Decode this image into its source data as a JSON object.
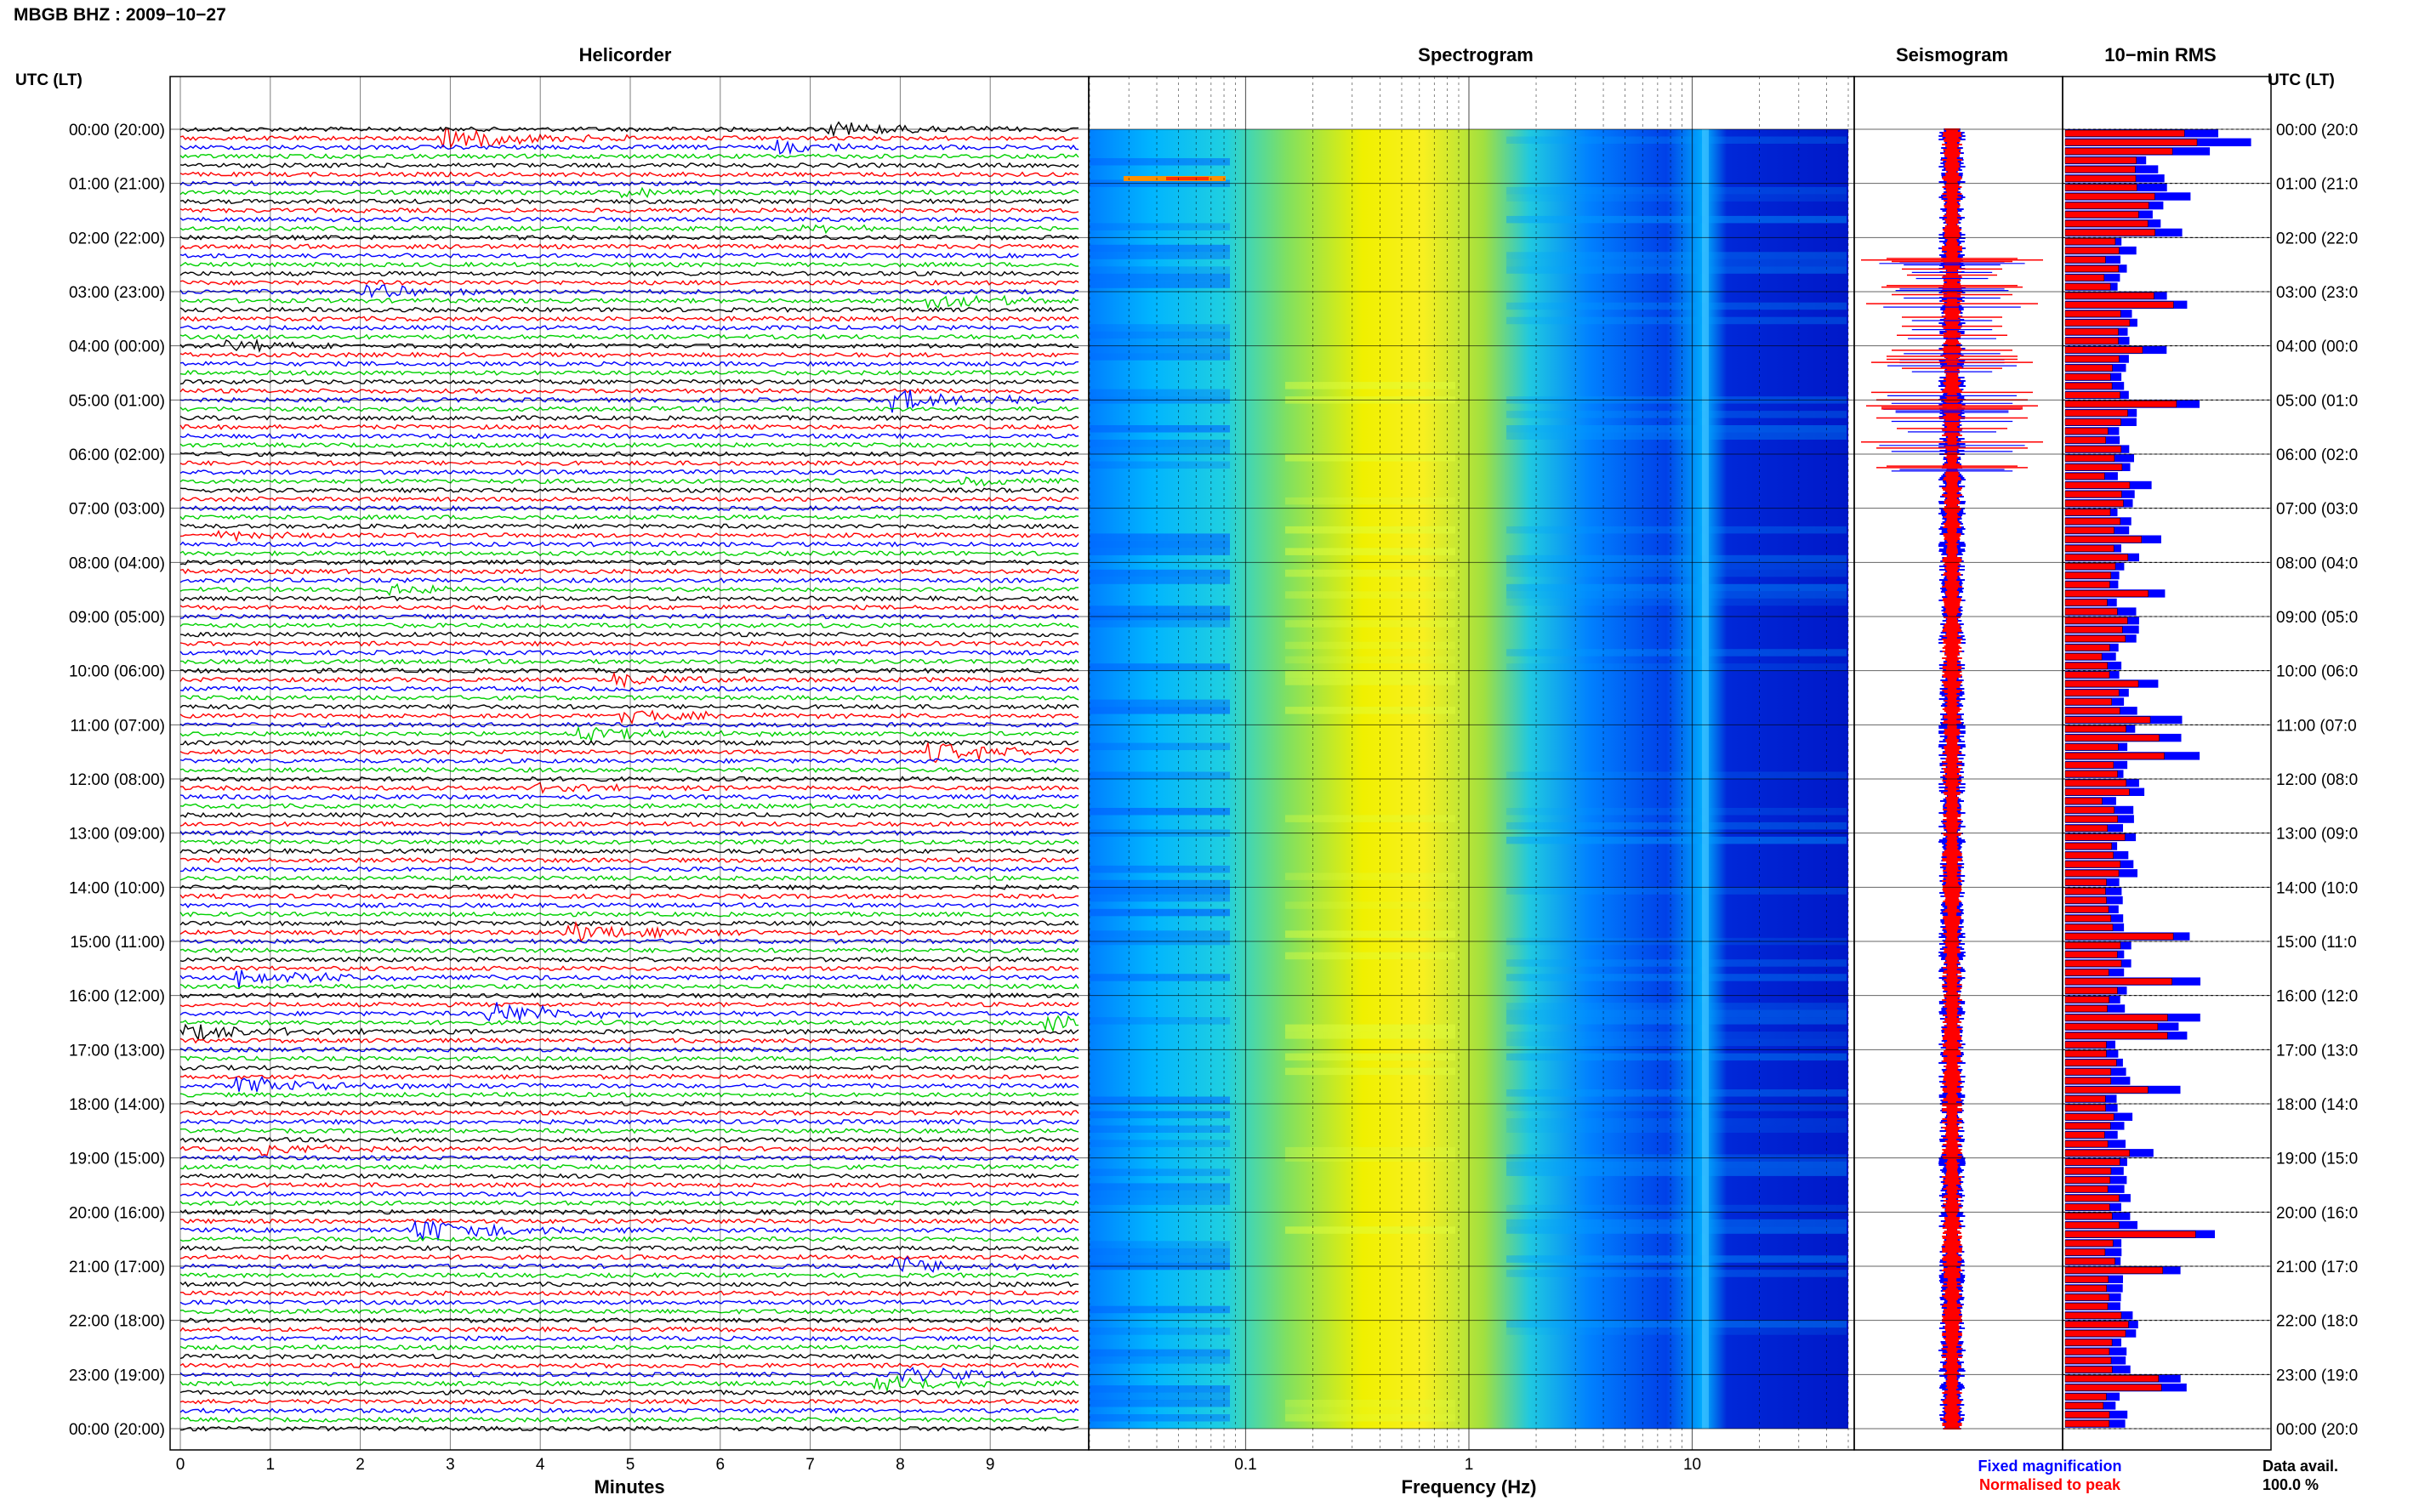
{
  "page_title": "MBGB BHZ : 2009−10−27",
  "panels": {
    "helicorder": "Helicorder",
    "spectrogram": "Spectrogram",
    "seismogram": "Seismogram",
    "rms": "10−min RMS"
  },
  "left_axis_label": "UTC (LT)",
  "right_axis_label": "UTC (LT)",
  "time_labels": [
    "00:00 (20:00)",
    "01:00 (21:00)",
    "02:00 (22:00)",
    "03:00 (23:00)",
    "04:00 (00:00)",
    "05:00 (01:00)",
    "06:00 (02:00)",
    "07:00 (03:00)",
    "08:00 (04:00)",
    "09:00 (05:00)",
    "10:00 (06:00)",
    "11:00 (07:00)",
    "12:00 (08:00)",
    "13:00 (09:00)",
    "14:00 (10:00)",
    "15:00 (11:00)",
    "16:00 (12:00)",
    "17:00 (13:00)",
    "18:00 (14:00)",
    "19:00 (15:00)",
    "20:00 (16:00)",
    "21:00 (17:00)",
    "22:00 (18:00)",
    "23:00 (19:00)",
    "00:00 (20:00)"
  ],
  "right_time_labels": [
    "00:00 (20:0",
    "01:00 (21:0",
    "02:00 (22:0",
    "03:00 (23:0",
    "04:00 (00:0",
    "05:00 (01:0",
    "06:00 (02:0",
    "07:00 (03:0",
    "08:00 (04:0",
    "09:00 (05:0",
    "10:00 (06:0",
    "11:00 (07:0",
    "12:00 (08:0",
    "13:00 (09:0",
    "14:00 (10:0",
    "15:00 (11:0",
    "16:00 (12:0",
    "17:00 (13:0",
    "18:00 (14:0",
    "19:00 (15:0",
    "20:00 (16:0",
    "21:00 (17:0",
    "22:00 (18:0",
    "23:00 (19:0",
    "00:00 (20:0"
  ],
  "helicorder_xlabel": "Minutes",
  "helicorder_ticks": [
    "0",
    "1",
    "2",
    "3",
    "4",
    "5",
    "6",
    "7",
    "8",
    "9"
  ],
  "spectrogram_xlabel": "Frequency (Hz)",
  "spectrogram_ticks": [
    "0.1",
    "1",
    "10"
  ],
  "legend": {
    "fixed": "Fixed magnification",
    "normalised": "Normalised to peak",
    "fixed_color": "#0000ff",
    "normalised_color": "#ff0000"
  },
  "data_avail_label": "Data avail.",
  "data_avail_value": "100.0 %",
  "colors": {
    "trace_cycle": [
      "#000000",
      "#ff0000",
      "#0000ff",
      "#00d000"
    ],
    "spectro_low": "#0000c8",
    "spectro_mid": "#00c8ff",
    "spectro_high": "#ffff00",
    "spectro_peak": "#ff4000"
  },
  "chart_data": [
    {
      "type": "line",
      "panel": "helicorder",
      "xlabel": "Minutes",
      "xlim": [
        0,
        10
      ],
      "ylabel": "UTC (LT)",
      "lines_per_hour": 6,
      "events": [
        {
          "line": 0,
          "minute": 7.2,
          "amp": 0.7
        },
        {
          "line": 1,
          "minute": 2.9,
          "amp": 1.2
        },
        {
          "line": 2,
          "minute": 6.6,
          "amp": 0.6
        },
        {
          "line": 7,
          "minute": 4.9,
          "amp": 0.4
        },
        {
          "line": 11,
          "minute": 6.9,
          "amp": 0.3
        },
        {
          "line": 18,
          "minute": 2.0,
          "amp": 0.7
        },
        {
          "line": 19,
          "minute": 8.3,
          "amp": 0.8
        },
        {
          "line": 24,
          "minute": 0.5,
          "amp": 0.6
        },
        {
          "line": 30,
          "minute": 7.9,
          "amp": 1.1
        },
        {
          "line": 39,
          "minute": 8.6,
          "amp": 0.4
        },
        {
          "line": 45,
          "minute": 0.4,
          "amp": 0.4
        },
        {
          "line": 51,
          "minute": 2.3,
          "amp": 0.5
        },
        {
          "line": 61,
          "minute": 4.8,
          "amp": 0.6
        },
        {
          "line": 65,
          "minute": 4.9,
          "amp": 0.7
        },
        {
          "line": 67,
          "minute": 4.4,
          "amp": 0.7
        },
        {
          "line": 69,
          "minute": 8.3,
          "amp": 1.0
        },
        {
          "line": 73,
          "minute": 3.9,
          "amp": 0.4
        },
        {
          "line": 89,
          "minute": 4.2,
          "amp": 1.0
        },
        {
          "line": 94,
          "minute": 0.6,
          "amp": 0.9
        },
        {
          "line": 98,
          "minute": 3.4,
          "amp": 1.1
        },
        {
          "line": 99,
          "minute": 9.6,
          "amp": 0.8
        },
        {
          "line": 100,
          "minute": 0.0,
          "amp": 0.8
        },
        {
          "line": 106,
          "minute": 0.6,
          "amp": 0.9
        },
        {
          "line": 113,
          "minute": 0.9,
          "amp": 0.5
        },
        {
          "line": 122,
          "minute": 2.6,
          "amp": 1.2
        },
        {
          "line": 126,
          "minute": 7.9,
          "amp": 0.9
        },
        {
          "line": 138,
          "minute": 8.0,
          "amp": 0.7
        },
        {
          "line": 139,
          "minute": 7.7,
          "amp": 0.9
        }
      ]
    },
    {
      "type": "heatmap",
      "panel": "spectrogram",
      "xlabel": "Frequency (Hz)",
      "xscale": "log",
      "xlim": [
        0.02,
        50
      ],
      "ylabel": "UTC (LT)"
    },
    {
      "type": "bar",
      "panel": "10-min RMS",
      "series": [
        {
          "name": "Fixed magnification",
          "color": "#0000ff"
        },
        {
          "name": "Normalised to peak",
          "color": "#ff0000"
        }
      ]
    }
  ]
}
